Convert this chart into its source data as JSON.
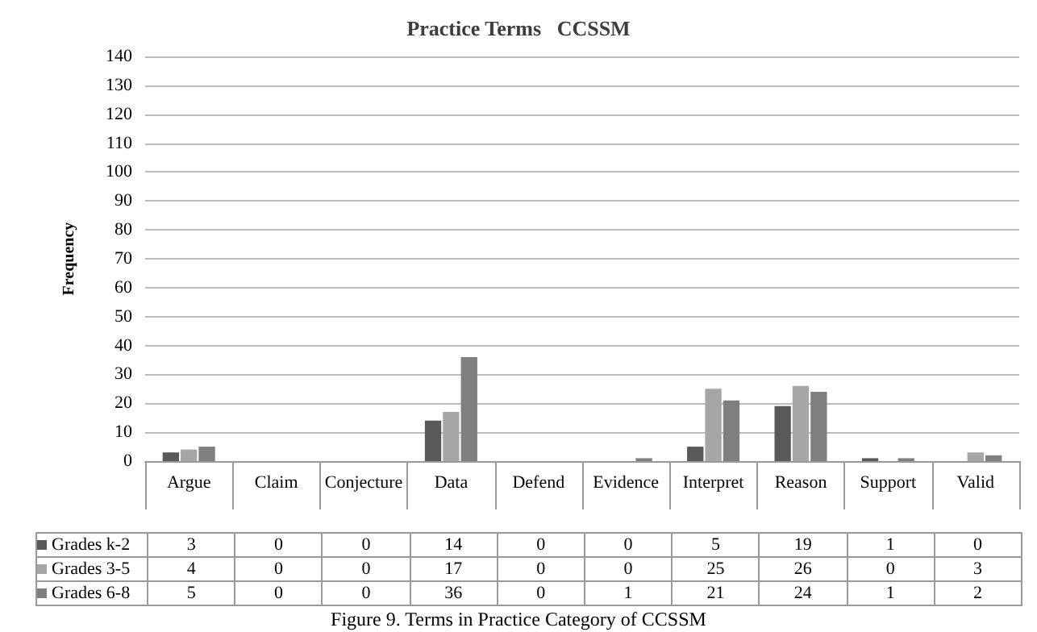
{
  "chart_data": {
    "type": "bar",
    "title": "Practice Terms   CCSSM",
    "ylabel": "Frequency",
    "categories": [
      "Argue",
      "Claim",
      "Conjecture",
      "Data",
      "Defend",
      "Evidence",
      "Interpret",
      "Reason",
      "Support",
      "Valid"
    ],
    "series": [
      {
        "name": "Grades k-2",
        "color": "#595959",
        "values": [
          3,
          0,
          0,
          14,
          0,
          0,
          5,
          19,
          1,
          0
        ]
      },
      {
        "name": "Grades 3-5",
        "color": "#a6a6a6",
        "values": [
          4,
          0,
          0,
          17,
          0,
          0,
          25,
          26,
          0,
          3
        ]
      },
      {
        "name": "Grades 6-8",
        "color": "#7f7f7f",
        "values": [
          5,
          0,
          0,
          36,
          0,
          1,
          21,
          24,
          1,
          2
        ]
      }
    ],
    "ylim": [
      0,
      140
    ],
    "yticks": [
      0,
      10,
      20,
      30,
      40,
      50,
      60,
      70,
      80,
      90,
      100,
      110,
      120,
      130,
      140
    ],
    "grid": "y",
    "legend": "bottom",
    "data_labels": true,
    "annotations": [
      "Figure 9. Terms in Practice Category of CCSSM"
    ]
  }
}
